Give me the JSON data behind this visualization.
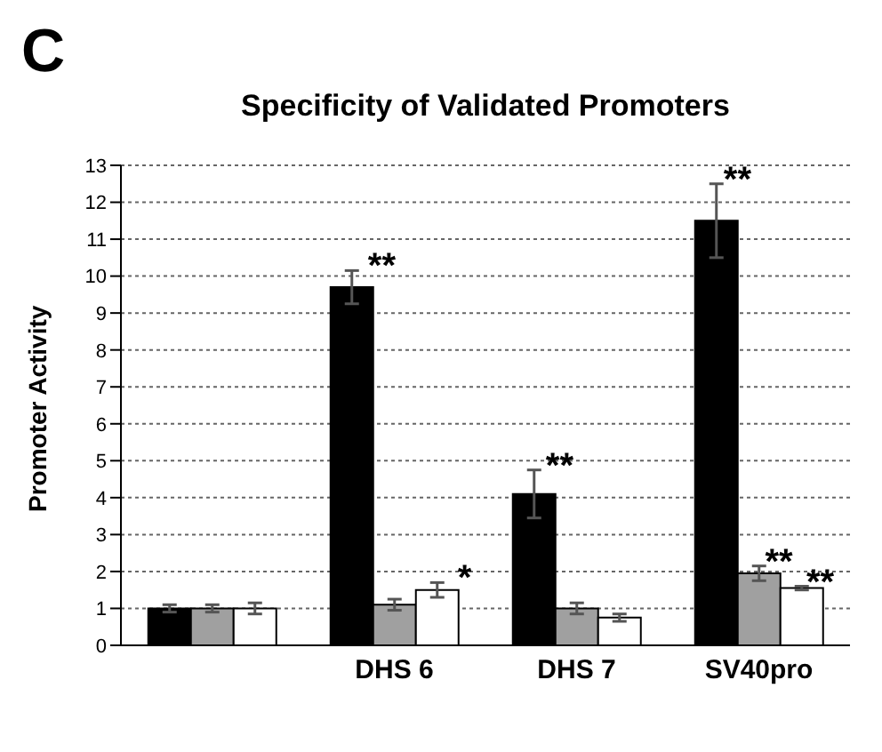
{
  "chart_data": {
    "type": "bar",
    "title": "Specificity of Validated Promoters",
    "ylabel": "Promoter Activity",
    "categories": [
      null,
      "DHS 6",
      "DHS 7",
      "SV40pro"
    ],
    "series": [
      {
        "color": "#000000",
        "values": [
          1,
          9.7,
          4.1,
          11.5
        ],
        "errors": [
          0.1,
          0.45,
          0.65,
          1.0
        ]
      },
      {
        "color": "#a0a0a0",
        "values": [
          1,
          1.1,
          1.0,
          1.95
        ],
        "errors": [
          0.1,
          0.15,
          0.15,
          0.2
        ]
      },
      {
        "color": "#ffffff",
        "values": [
          1,
          1.5,
          0.75,
          1.55
        ],
        "errors": [
          0.15,
          0.2,
          0.1,
          0.05
        ]
      }
    ],
    "ylim": [
      0,
      13
    ],
    "yticks": [
      0,
      1,
      2,
      3,
      4,
      5,
      6,
      7,
      8,
      9,
      10,
      11,
      12,
      13
    ],
    "grid": "y",
    "legend": false,
    "annotations": [
      "C",
      "**",
      "*",
      "**",
      "**",
      "**",
      "**"
    ]
  }
}
